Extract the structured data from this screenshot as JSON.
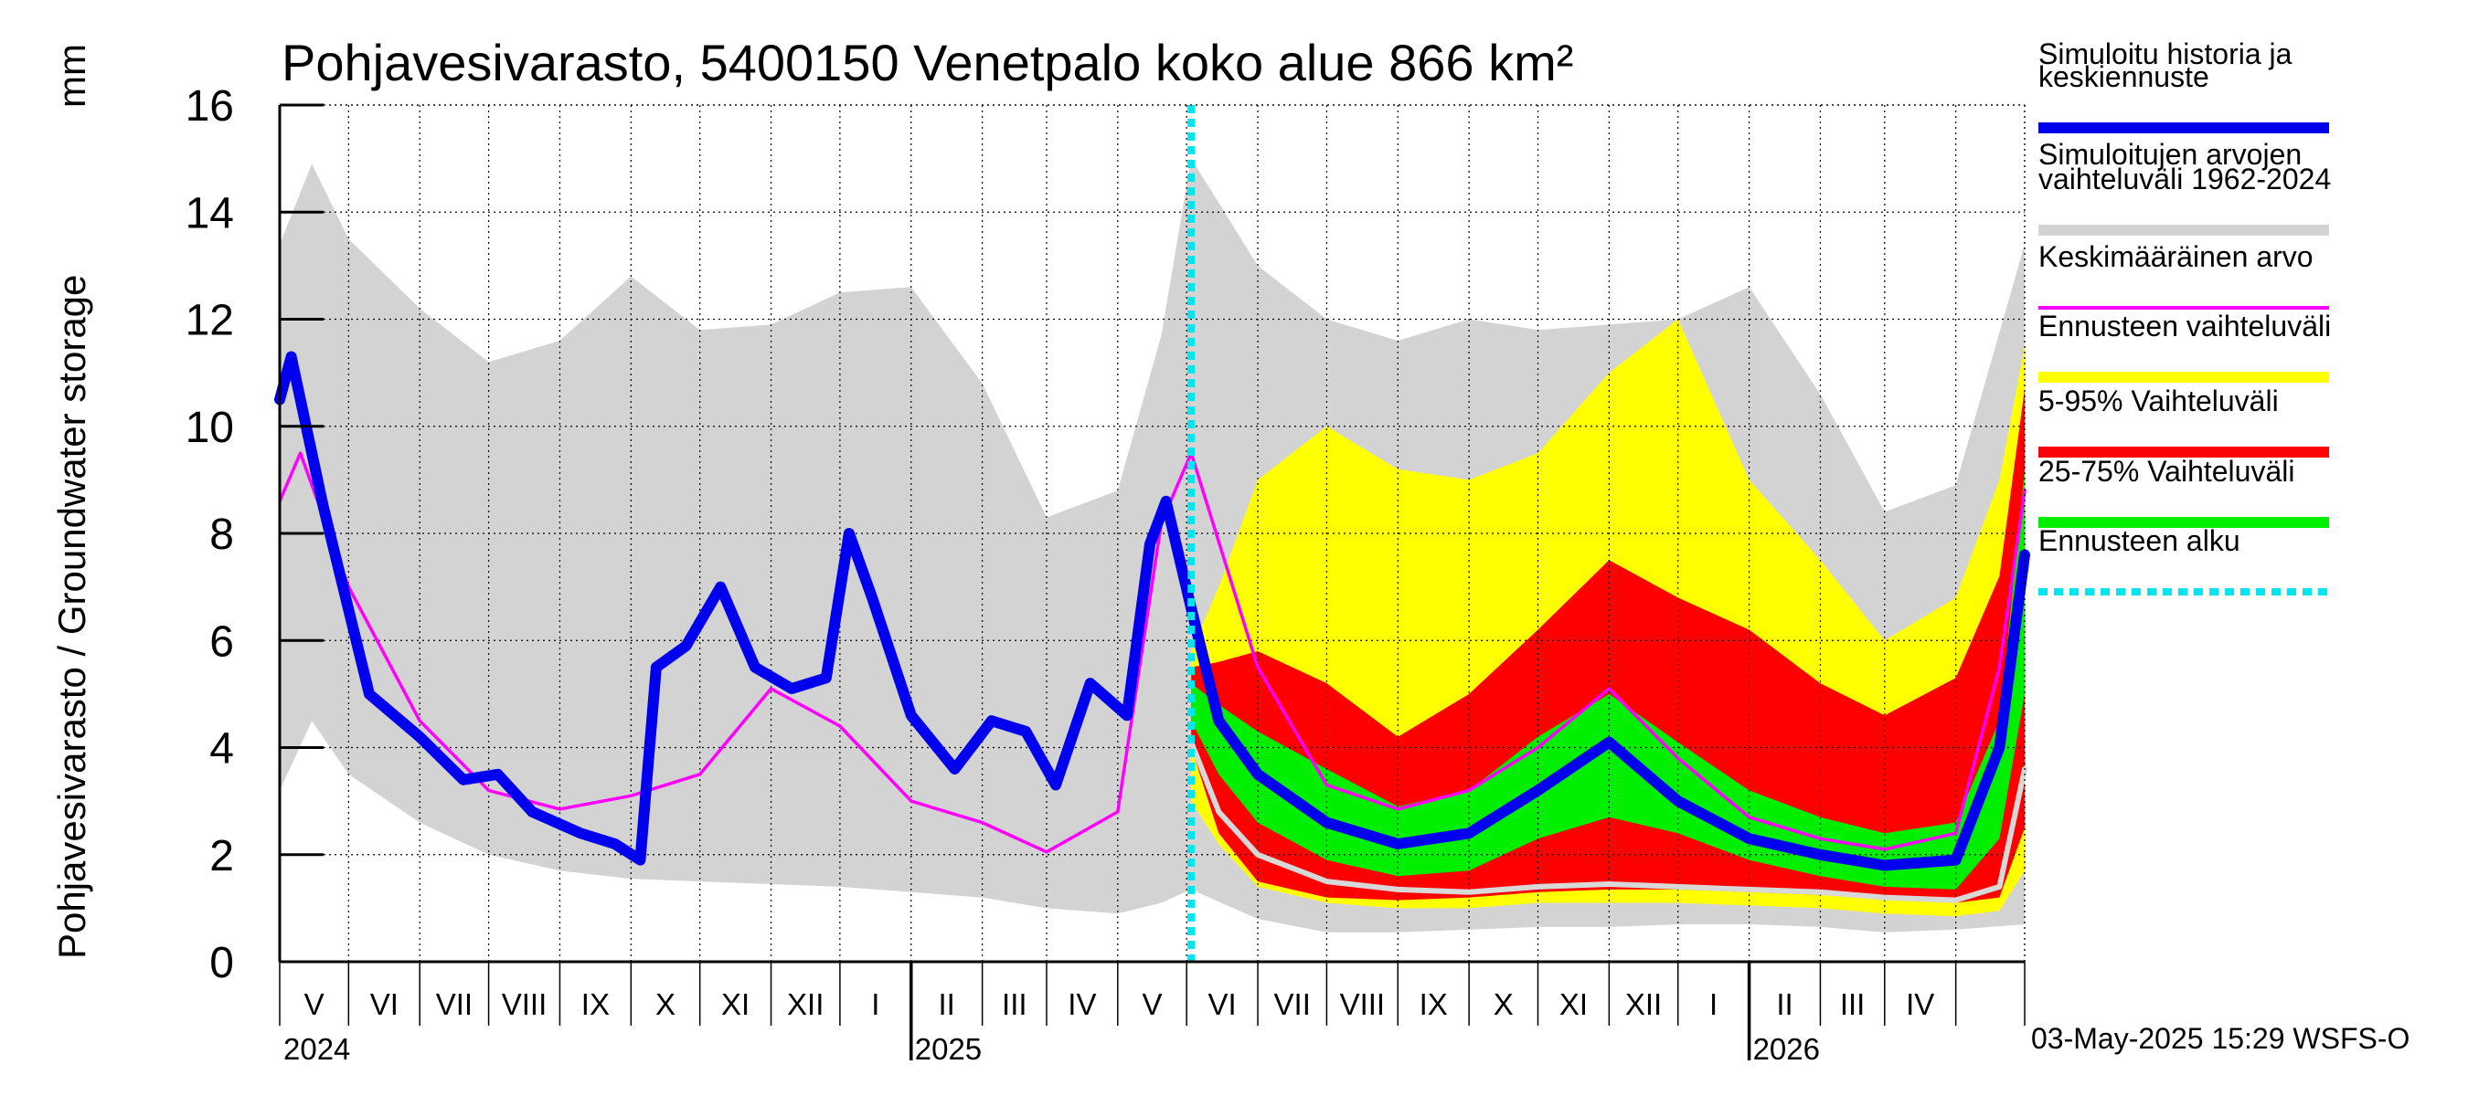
{
  "chart_data": {
    "type": "area",
    "title": "Pohjavesivarasto, 5400150 Venetpalo koko alue 866 km²",
    "ylabel": "Pohjavesivarasto / Groundwater storage",
    "yunit": "mm",
    "ylim": [
      0,
      16
    ],
    "yticks": [
      0,
      2,
      4,
      6,
      8,
      10,
      12,
      14,
      16
    ],
    "xlim": [
      "2024-04-01",
      "2026-05-01"
    ],
    "forecast_start": "2025-05-03",
    "grid": true,
    "legend_position": "right",
    "month_labels": [
      "V",
      "VI",
      "VII",
      "VIII",
      "IX",
      "X",
      "XI",
      "XII",
      "I",
      "II",
      "III",
      "IV",
      "V",
      "VI",
      "VII",
      "VIII",
      "IX",
      "X",
      "XI",
      "XII",
      "I",
      "II",
      "III",
      "IV"
    ],
    "year_labels": [
      "2024",
      "2025",
      "2026"
    ],
    "colors": {
      "history": "#0000ee",
      "range": "#d3d3d3",
      "mean": "#ff00ff",
      "forecast_range": "#ffff00",
      "p5_95": "#ff0000",
      "p25_75": "#00ee00",
      "forecast_start": "#00e5ee"
    },
    "series": [
      {
        "key": "sim_range",
        "name": "Simuloitujen arvojen vaihteluväli 1962-2024",
        "x": [
          "2024-04-01",
          "2024-04-15",
          "2024-05-01",
          "2024-06-01",
          "2024-07-01",
          "2024-08-01",
          "2024-09-01",
          "2024-10-01",
          "2024-11-01",
          "2024-12-01",
          "2025-01-01",
          "2025-02-01",
          "2025-03-01",
          "2025-04-01",
          "2025-04-20",
          "2025-05-03",
          "2025-06-01",
          "2025-07-01",
          "2025-08-01",
          "2025-09-01",
          "2025-10-01",
          "2025-11-01",
          "2025-12-01",
          "2026-01-01",
          "2026-02-01",
          "2026-03-01",
          "2026-04-01",
          "2026-05-01"
        ],
        "upper": [
          13.4,
          14.9,
          13.5,
          12.2,
          11.2,
          11.6,
          12.8,
          11.8,
          11.9,
          12.5,
          12.6,
          10.8,
          8.3,
          8.8,
          11.7,
          15.0,
          13.0,
          12.0,
          11.6,
          12.0,
          11.8,
          11.9,
          12.0,
          12.6,
          10.6,
          8.4,
          8.9,
          13.4
        ],
        "lower": [
          3.2,
          4.5,
          3.5,
          2.6,
          2.0,
          1.7,
          1.55,
          1.5,
          1.45,
          1.4,
          1.3,
          1.2,
          1.0,
          0.9,
          1.1,
          1.35,
          0.8,
          0.55,
          0.55,
          0.6,
          0.65,
          0.65,
          0.7,
          0.7,
          0.65,
          0.55,
          0.6,
          0.7
        ]
      },
      {
        "key": "forecast_range",
        "name": "Ennusteen vaihteluväli",
        "x": [
          "2025-05-03",
          "2025-05-15",
          "2025-06-01",
          "2025-07-01",
          "2025-08-01",
          "2025-09-01",
          "2025-10-01",
          "2025-11-01",
          "2025-12-01",
          "2026-01-01",
          "2026-02-01",
          "2026-03-01",
          "2026-04-01",
          "2026-04-20",
          "2026-05-01"
        ],
        "upper": [
          5.8,
          7.0,
          9.0,
          10.0,
          9.2,
          9.0,
          9.5,
          11.0,
          12.0,
          9.0,
          7.5,
          6.0,
          6.8,
          9.0,
          11.5
        ],
        "lower": [
          3.0,
          2.2,
          1.4,
          1.1,
          1.0,
          1.0,
          1.1,
          1.1,
          1.1,
          1.05,
          1.0,
          0.9,
          0.85,
          0.95,
          1.7
        ]
      },
      {
        "key": "p5_95",
        "name": "5-95% Vaihteluväli",
        "x": [
          "2025-05-03",
          "2025-05-15",
          "2025-06-01",
          "2025-07-01",
          "2025-08-01",
          "2025-09-01",
          "2025-10-01",
          "2025-11-01",
          "2025-12-01",
          "2026-01-01",
          "2026-02-01",
          "2026-03-01",
          "2026-04-01",
          "2026-04-20",
          "2026-05-01"
        ],
        "upper": [
          5.5,
          5.6,
          5.8,
          5.2,
          4.2,
          5.0,
          6.2,
          7.5,
          6.8,
          6.2,
          5.2,
          4.6,
          5.3,
          7.2,
          10.7
        ],
        "lower": [
          4.0,
          2.4,
          1.5,
          1.2,
          1.15,
          1.2,
          1.3,
          1.35,
          1.35,
          1.3,
          1.25,
          1.2,
          1.1,
          1.2,
          2.5
        ]
      },
      {
        "key": "p25_75",
        "name": "25-75% Vaihteluväli",
        "x": [
          "2025-05-03",
          "2025-05-15",
          "2025-06-01",
          "2025-07-01",
          "2025-08-01",
          "2025-09-01",
          "2025-10-01",
          "2025-11-01",
          "2025-12-01",
          "2026-01-01",
          "2026-02-01",
          "2026-03-01",
          "2026-04-01",
          "2026-04-20",
          "2026-05-01"
        ],
        "upper": [
          5.2,
          4.8,
          4.3,
          3.6,
          2.9,
          3.2,
          4.2,
          5.0,
          4.1,
          3.2,
          2.7,
          2.4,
          2.6,
          4.5,
          9.2
        ],
        "lower": [
          4.5,
          3.5,
          2.6,
          1.9,
          1.6,
          1.7,
          2.3,
          2.7,
          2.4,
          1.9,
          1.6,
          1.4,
          1.35,
          2.3,
          5.0
        ]
      },
      {
        "key": "mean",
        "name": "Keskimääräinen arvo",
        "x": [
          "2024-04-01",
          "2024-04-10",
          "2024-05-01",
          "2024-06-01",
          "2024-07-01",
          "2024-08-01",
          "2024-09-01",
          "2024-10-01",
          "2024-11-01",
          "2024-12-01",
          "2025-01-01",
          "2025-02-01",
          "2025-03-01",
          "2025-04-01",
          "2025-04-20",
          "2025-05-03",
          "2025-06-01",
          "2025-07-01",
          "2025-08-01",
          "2025-09-01",
          "2025-10-01",
          "2025-11-01",
          "2025-12-01",
          "2026-01-01",
          "2026-02-01",
          "2026-03-01",
          "2026-04-01",
          "2026-04-20",
          "2026-05-01"
        ],
        "values": [
          8.6,
          9.5,
          7.0,
          4.5,
          3.2,
          2.85,
          3.1,
          3.5,
          5.1,
          4.4,
          3.0,
          2.6,
          2.05,
          2.8,
          8.2,
          9.5,
          5.5,
          3.3,
          2.85,
          3.2,
          4.0,
          5.1,
          3.8,
          2.7,
          2.3,
          2.1,
          2.4,
          5.5,
          8.8
        ]
      },
      {
        "key": "history",
        "name": "Simuloitu historia ja keskiennuste",
        "x": [
          "2024-04-01",
          "2024-04-06",
          "2024-04-20",
          "2024-05-10",
          "2024-06-01",
          "2024-06-20",
          "2024-07-05",
          "2024-07-20",
          "2024-08-10",
          "2024-08-25",
          "2024-09-05",
          "2024-09-12",
          "2024-09-25",
          "2024-10-10",
          "2024-10-25",
          "2024-11-10",
          "2024-11-25",
          "2024-12-05",
          "2024-12-15",
          "2025-01-01",
          "2025-01-20",
          "2025-02-05",
          "2025-02-20",
          "2025-03-05",
          "2025-03-20",
          "2025-04-05",
          "2025-04-15",
          "2025-04-22",
          "2025-05-03",
          "2025-05-15",
          "2025-06-01",
          "2025-07-01",
          "2025-08-01",
          "2025-09-01",
          "2025-10-01",
          "2025-11-01",
          "2025-12-01",
          "2026-01-01",
          "2026-02-01",
          "2026-03-01",
          "2026-04-01",
          "2026-04-20",
          "2026-05-01"
        ],
        "values": [
          10.5,
          11.3,
          8.5,
          5.0,
          4.2,
          3.4,
          3.5,
          2.8,
          2.4,
          2.2,
          1.9,
          5.5,
          5.9,
          7.0,
          5.5,
          5.1,
          5.3,
          8.0,
          6.8,
          4.6,
          3.6,
          4.5,
          4.3,
          3.3,
          5.2,
          4.6,
          7.8,
          8.6,
          6.6,
          4.5,
          3.5,
          2.6,
          2.2,
          2.4,
          3.2,
          4.1,
          3.0,
          2.3,
          2.0,
          1.8,
          1.9,
          4.0,
          7.6
        ]
      },
      {
        "key": "min_line",
        "name": "",
        "x": [
          "2025-05-03",
          "2025-05-15",
          "2025-06-01",
          "2025-07-01",
          "2025-08-01",
          "2025-09-01",
          "2025-10-01",
          "2025-11-01",
          "2025-12-01",
          "2026-01-01",
          "2026-02-01",
          "2026-03-01",
          "2026-04-01",
          "2026-04-20",
          "2026-05-01"
        ],
        "values": [
          4.1,
          2.8,
          2.0,
          1.5,
          1.35,
          1.3,
          1.4,
          1.45,
          1.4,
          1.35,
          1.3,
          1.2,
          1.15,
          1.4,
          3.6
        ]
      }
    ],
    "legend": [
      {
        "label_lines": [
          "Simuloitu historia ja",
          "keskiennuste"
        ],
        "color": "#0000ee",
        "style": "solid-thick"
      },
      {
        "label_lines": [
          "Simuloitujen arvojen",
          "vaihteluväli 1962-2024"
        ],
        "color": "#d3d3d3",
        "style": "solid"
      },
      {
        "label_lines": [
          "Keskimääräinen arvo"
        ],
        "color": "#ff00ff",
        "style": "solid-thin"
      },
      {
        "label_lines": [
          "Ennusteen vaihteluväli"
        ],
        "color": "#ffff00",
        "style": "solid"
      },
      {
        "label_lines": [
          "5-95% Vaihteluväli"
        ],
        "color": "#ff0000",
        "style": "solid"
      },
      {
        "label_lines": [
          "25-75% Vaihteluväli"
        ],
        "color": "#00ee00",
        "style": "solid"
      },
      {
        "label_lines": [
          "Ennusteen alku"
        ],
        "color": "#00e5ee",
        "style": "dotted"
      }
    ],
    "footer": "03-May-2025 15:29 WSFS-O"
  }
}
